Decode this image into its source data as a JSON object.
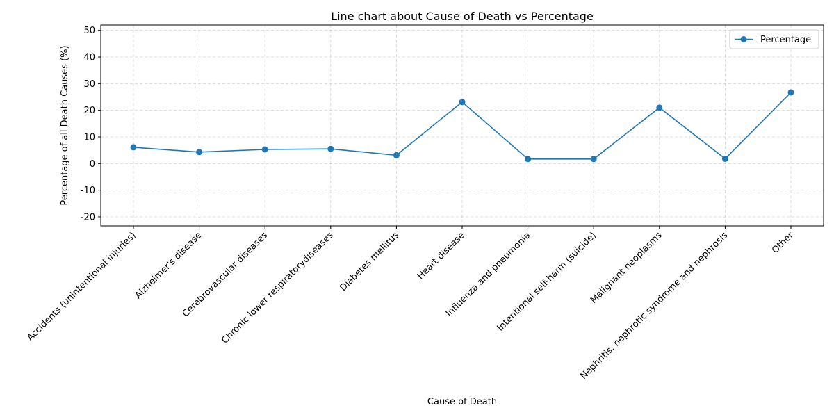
{
  "chart_data": {
    "type": "line",
    "title": "Line chart about Cause of Death vs Percentage",
    "xlabel": "Cause of Death",
    "ylabel": "Percentage of all Death Causes (%)",
    "categories": [
      "Accidents (unintentional injuries)",
      "Alzheimer's disease",
      "Cerebrovascular diseases",
      "Chronic lower respiratorydiseases",
      "Diabetes mellitus",
      "Heart disease",
      "Influenza and pneumonia",
      "Intentional self-harm (suicide)",
      "Malignant neoplasms",
      "Nephritis, nephrotic syndrome and nephrosis",
      "Other"
    ],
    "series": [
      {
        "name": "Percentage",
        "values": [
          6.1,
          4.3,
          5.3,
          5.5,
          3.1,
          23.1,
          1.7,
          1.7,
          21.0,
          1.8,
          26.7
        ],
        "color": "#1f77b4"
      }
    ],
    "ylim": [
      -23.4,
      52.0
    ],
    "yticks": [
      -20,
      -10,
      0,
      10,
      20,
      30,
      40,
      50
    ],
    "grid": true,
    "legend": "top-right"
  }
}
